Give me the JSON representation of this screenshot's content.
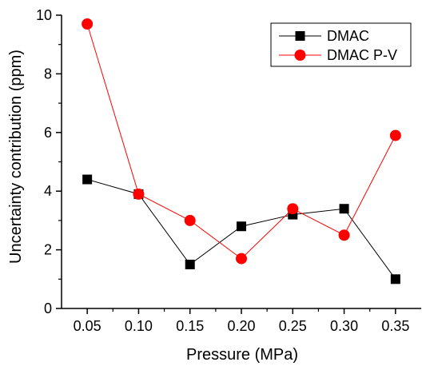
{
  "chart_data": {
    "type": "line",
    "title": "",
    "xlabel": "Pressure (MPa)",
    "ylabel": "Uncertainty contribution (ppm)",
    "x": [
      0.05,
      0.1,
      0.15,
      0.2,
      0.25,
      0.3,
      0.35
    ],
    "x_tick_labels": [
      "0.05",
      "0.10",
      "0.15",
      "0.20",
      "0.25",
      "0.30",
      "0.35"
    ],
    "xlim": [
      0.025,
      0.375
    ],
    "ylim": [
      0,
      10
    ],
    "y_ticks": [
      0,
      2,
      4,
      6,
      8,
      10
    ],
    "y_tick_labels": [
      "0",
      "2",
      "4",
      "6",
      "8",
      "10"
    ],
    "grid": false,
    "legend_position": "top-right",
    "series": [
      {
        "name": "DMAC",
        "marker": "square",
        "color": "#000000",
        "values": [
          4.4,
          3.9,
          1.5,
          2.8,
          3.2,
          3.4,
          1.0
        ]
      },
      {
        "name": "DMAC P-V",
        "marker": "circle",
        "color": "#ff0000",
        "values": [
          9.7,
          3.9,
          3.0,
          1.7,
          3.4,
          2.5,
          5.9
        ]
      }
    ]
  }
}
